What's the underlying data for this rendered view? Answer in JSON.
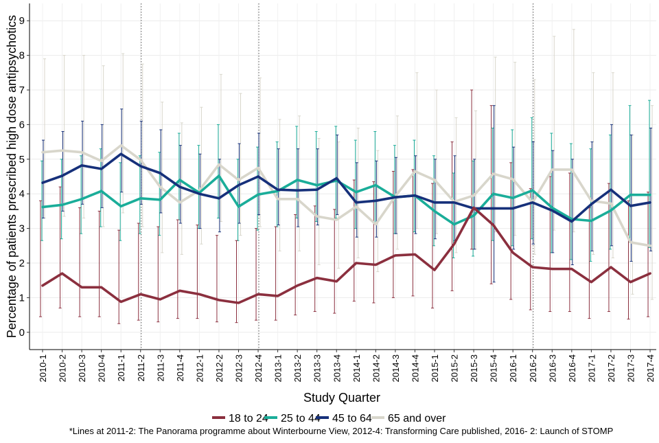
{
  "chart_data": {
    "type": "line",
    "title": "",
    "xlabel": "Study Quarter",
    "ylabel": "Percentage of patients prescribed high dose antipsychotics",
    "ylim": [
      -0.5,
      9.5
    ],
    "y_ticks": [
      0,
      1,
      2,
      3,
      4,
      5,
      6,
      7,
      8,
      9
    ],
    "grid": true,
    "legend_position": "bottom",
    "categories": [
      "2010-1",
      "2010-2",
      "2010-3",
      "2010-4",
      "2011-1",
      "2011-2",
      "2011-3",
      "2011-4",
      "2012-1",
      "2012-2",
      "2012-3",
      "2012-4",
      "2013-1",
      "2013-2",
      "2013-3",
      "2013-4",
      "2014-1",
      "2014-2",
      "2014-3",
      "2014-4",
      "2015-1",
      "2015-2",
      "2015-3",
      "2015-4",
      "2016-1",
      "2016-2",
      "2016-3",
      "2016-4",
      "2017-1",
      "2017-2",
      "2017-3",
      "2017-4"
    ],
    "reference_lines": [
      "2011-2",
      "2012-4",
      "2016-2"
    ],
    "series": [
      {
        "name": "18 to 24",
        "color": "#8b2f3e",
        "values": [
          1.35,
          1.7,
          1.3,
          1.3,
          0.88,
          1.1,
          0.95,
          1.2,
          1.1,
          0.93,
          0.85,
          1.1,
          1.05,
          1.35,
          1.57,
          1.47,
          2.0,
          1.95,
          2.22,
          2.25,
          1.8,
          2.55,
          3.6,
          3.1,
          2.3,
          1.88,
          1.83,
          1.83,
          1.45,
          1.88,
          1.45,
          1.7
        ],
        "lower": [
          0.45,
          0.7,
          0.45,
          0.45,
          0.25,
          0.35,
          0.3,
          0.4,
          0.4,
          0.3,
          0.28,
          0.35,
          0.35,
          0.5,
          0.6,
          0.55,
          0.9,
          0.85,
          1.0,
          1.05,
          0.7,
          1.2,
          2.4,
          1.4,
          0.95,
          0.65,
          0.6,
          0.6,
          0.4,
          0.6,
          0.38,
          0.45
        ],
        "upper": [
          3.8,
          4.2,
          3.6,
          3.5,
          2.95,
          3.15,
          3.05,
          3.25,
          3.1,
          2.8,
          2.65,
          3.0,
          3.05,
          3.4,
          3.65,
          3.55,
          4.4,
          4.35,
          4.65,
          4.7,
          4.3,
          5.5,
          7.0,
          6.55,
          4.9,
          4.15,
          4.5,
          4.6,
          3.6,
          4.3,
          3.8,
          4.05
        ]
      },
      {
        "name": "25 to 44",
        "color": "#1aad99",
        "values": [
          3.62,
          3.68,
          3.85,
          4.08,
          3.64,
          3.87,
          3.83,
          4.4,
          4.03,
          4.52,
          3.63,
          3.98,
          4.08,
          4.4,
          4.25,
          4.38,
          4.05,
          4.25,
          3.9,
          3.95,
          3.5,
          3.12,
          3.37,
          4.0,
          3.88,
          4.1,
          3.6,
          3.27,
          3.22,
          3.52,
          3.97,
          3.97
        ],
        "lower": [
          2.65,
          2.7,
          2.85,
          3.05,
          2.65,
          2.85,
          2.8,
          3.25,
          3.0,
          3.3,
          2.65,
          2.95,
          3.05,
          3.3,
          3.2,
          3.3,
          3.0,
          3.15,
          2.85,
          2.9,
          2.5,
          2.15,
          2.2,
          2.65,
          2.5,
          2.7,
          2.3,
          2.1,
          2.05,
          2.4,
          2.6,
          2.45
        ],
        "upper": [
          4.95,
          5.0,
          5.1,
          5.3,
          4.9,
          5.1,
          5.2,
          5.75,
          5.4,
          6.0,
          5.0,
          5.35,
          5.5,
          5.95,
          5.8,
          5.95,
          5.55,
          5.8,
          5.4,
          5.55,
          5.1,
          4.6,
          4.95,
          5.9,
          5.85,
          6.2,
          5.75,
          5.45,
          5.3,
          5.7,
          6.55,
          6.7
        ]
      },
      {
        "name": "45 to 64",
        "color": "#16307a",
        "values": [
          4.32,
          4.52,
          4.82,
          4.72,
          5.15,
          4.8,
          4.6,
          4.2,
          4.0,
          3.87,
          4.25,
          4.5,
          4.12,
          4.1,
          4.12,
          4.45,
          3.75,
          3.8,
          3.9,
          3.95,
          3.75,
          3.75,
          3.58,
          3.58,
          3.58,
          3.75,
          3.52,
          3.2,
          3.7,
          4.12,
          3.65,
          3.75
        ],
        "lower": [
          3.3,
          3.5,
          3.7,
          3.6,
          4.05,
          3.7,
          3.45,
          3.15,
          3.0,
          2.9,
          3.15,
          3.4,
          3.1,
          3.05,
          3.1,
          3.4,
          2.75,
          2.75,
          2.85,
          2.85,
          2.7,
          2.65,
          2.4,
          1.45,
          2.4,
          2.55,
          2.3,
          1.95,
          2.35,
          2.5,
          2.05,
          2.35
        ],
        "upper": [
          5.55,
          5.8,
          6.1,
          6.0,
          6.45,
          6.1,
          5.85,
          5.4,
          5.15,
          5.0,
          5.45,
          5.75,
          5.3,
          5.3,
          5.3,
          5.7,
          4.9,
          4.95,
          5.05,
          5.1,
          5.0,
          5.1,
          5.0,
          6.55,
          5.35,
          5.5,
          5.25,
          5.0,
          5.5,
          6.0,
          5.7,
          5.9
        ]
      },
      {
        "name": "65 and over",
        "color": "#d8d6cb",
        "values": [
          5.2,
          5.25,
          5.2,
          4.95,
          5.4,
          4.98,
          4.2,
          3.75,
          4.1,
          4.85,
          4.4,
          4.75,
          3.85,
          3.85,
          3.35,
          3.25,
          3.63,
          3.12,
          3.93,
          4.65,
          4.4,
          3.77,
          3.95,
          4.58,
          4.42,
          3.75,
          4.7,
          4.7,
          3.8,
          3.72,
          2.6,
          2.5
        ],
        "lower": [
          3.3,
          3.35,
          3.3,
          3.05,
          3.45,
          3.05,
          2.3,
          2.25,
          2.55,
          3.2,
          2.8,
          3.05,
          2.35,
          2.35,
          1.95,
          1.85,
          2.15,
          1.75,
          2.4,
          3.0,
          2.85,
          2.3,
          2.4,
          2.9,
          2.8,
          2.25,
          2.95,
          2.9,
          2.25,
          2.15,
          1.1,
          0.95
        ],
        "upper": [
          7.9,
          8.0,
          8.0,
          7.7,
          8.05,
          7.75,
          6.65,
          6.05,
          6.5,
          7.45,
          6.9,
          7.35,
          6.15,
          6.25,
          5.6,
          5.5,
          5.9,
          5.25,
          6.25,
          7.5,
          7.0,
          6.2,
          6.4,
          7.95,
          7.8,
          7.3,
          8.55,
          8.75,
          7.5,
          7.5,
          5.7,
          6.55
        ]
      }
    ],
    "footnote": "*Lines at 2011-2: The Panorama programme about Winterbourne View, 2012-4: Transforming Care published, 2016- 2: Launch of STOMP"
  }
}
